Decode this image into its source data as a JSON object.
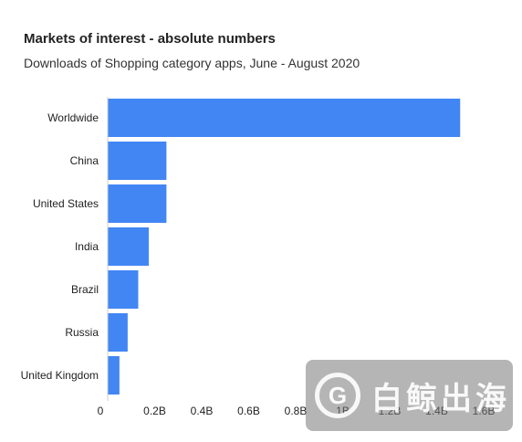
{
  "chart_data": {
    "type": "bar",
    "orientation": "horizontal",
    "title": "Markets of interest - absolute numbers",
    "subtitle": "Downloads of Shopping category apps, June - August 2020",
    "categories": [
      "Worldwide",
      "China",
      "United States",
      "India",
      "Brazil",
      "Russia",
      "United Kingdom"
    ],
    "values": [
      1.5,
      0.25,
      0.25,
      0.175,
      0.13,
      0.085,
      0.05
    ],
    "value_unit": "billions",
    "xlim": [
      0,
      1.6
    ],
    "xticks": [
      0,
      0.2,
      0.4,
      0.6,
      0.8,
      1.0,
      1.2,
      1.4,
      1.6
    ],
    "xtick_labels": [
      "0",
      "0.2B",
      "0.4B",
      "0.6B",
      "0.8B",
      "1B",
      "1.2B",
      "1.4B",
      "1.6B"
    ],
    "bar_color": "#4286f4",
    "grid": false,
    "legend": "none"
  },
  "watermark": {
    "logo_glyph": "G",
    "text": "白鲸出海"
  }
}
